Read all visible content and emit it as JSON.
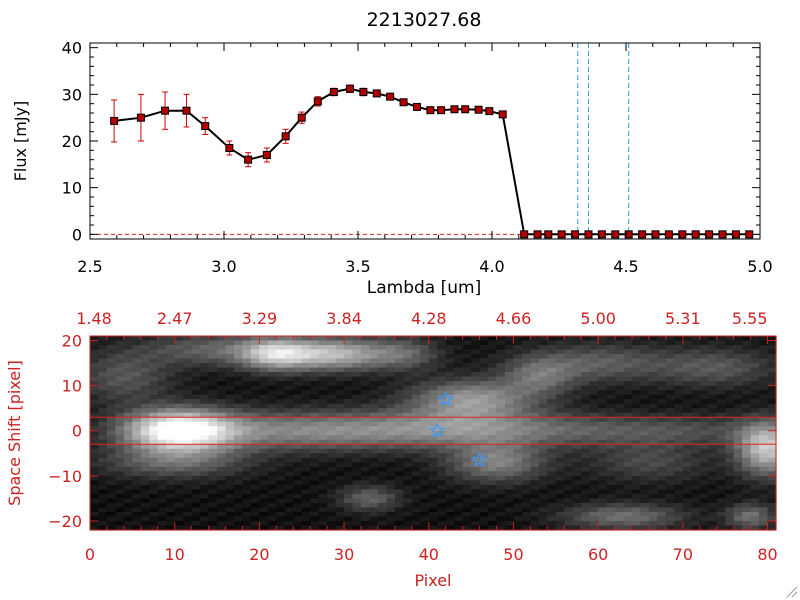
{
  "chart_data": [
    {
      "type": "line",
      "title": "2213027.68",
      "xlabel": "Lambda [um]",
      "ylabel": "Flux [mJy]",
      "xlim": [
        2.5,
        5.0
      ],
      "ylim": [
        -1,
        41
      ],
      "xticks": [
        2.5,
        3.0,
        3.5,
        4.0,
        4.5,
        5.0
      ],
      "xtick_labels": [
        "2.5",
        "3.0",
        "3.5",
        "4.0",
        "4.5",
        "5.0"
      ],
      "yticks": [
        0,
        10,
        20,
        30,
        40
      ],
      "ytick_labels": [
        "0",
        "10",
        "20",
        "30",
        "40"
      ],
      "series": [
        {
          "name": "flux",
          "color": "#000000",
          "marker_color": "#b00000",
          "errorbar_color": "#d00000",
          "x": [
            2.59,
            2.69,
            2.78,
            2.86,
            2.93,
            3.02,
            3.09,
            3.16,
            3.23,
            3.29,
            3.35,
            3.41,
            3.47,
            3.52,
            3.57,
            3.62,
            3.67,
            3.72,
            3.77,
            3.81,
            3.86,
            3.9,
            3.95,
            3.99,
            4.04,
            4.12,
            4.17,
            4.21,
            4.26,
            4.31,
            4.36,
            4.41,
            4.46,
            4.51,
            4.56,
            4.61,
            4.66,
            4.71,
            4.76,
            4.81,
            4.86,
            4.91,
            4.96
          ],
          "y": [
            24.3,
            25.0,
            26.5,
            26.5,
            23.2,
            18.5,
            16.0,
            17.0,
            21.0,
            25.0,
            28.5,
            30.5,
            31.2,
            30.5,
            30.2,
            29.5,
            28.3,
            27.3,
            26.6,
            26.6,
            26.8,
            26.8,
            26.7,
            26.4,
            25.7,
            0,
            0,
            0,
            0,
            0,
            0,
            0,
            0,
            0,
            0,
            0,
            0,
            0,
            0,
            0,
            0,
            0,
            0
          ],
          "yerr": [
            4.5,
            5.0,
            4.0,
            3.5,
            1.8,
            1.5,
            1.5,
            1.5,
            1.5,
            1.2,
            1.0,
            0.8,
            0.8,
            0.8,
            0.6,
            0.6,
            0.6,
            0.5,
            0.5,
            0.5,
            0.5,
            0.5,
            0.5,
            0.5,
            0.5,
            0,
            0,
            0,
            0,
            0,
            0,
            0,
            0,
            0,
            0,
            0,
            0,
            0,
            0,
            0,
            0,
            0,
            0
          ]
        }
      ],
      "reference_lines": {
        "vertical_x": [
          4.32,
          4.36,
          4.51
        ],
        "vertical_color": "#3399dd",
        "horizontal_y": [
          0
        ],
        "horizontal_color": "#dd2222"
      }
    },
    {
      "type": "heatmap",
      "xlabel": "Pixel",
      "ylabel": "Space Shift [pixel]",
      "xlim": [
        0,
        81
      ],
      "ylim": [
        -22,
        21
      ],
      "xticks": [
        0,
        10,
        20,
        30,
        40,
        50,
        60,
        70,
        80
      ],
      "xtick_labels": [
        "0",
        "10",
        "20",
        "30",
        "40",
        "50",
        "60",
        "70",
        "80"
      ],
      "yticks": [
        -20,
        -10,
        0,
        10,
        20
      ],
      "ytick_labels": [
        "−20",
        "−10",
        "0",
        "10",
        "20"
      ],
      "top_axis_positions": [
        0,
        10,
        20,
        30,
        40,
        50,
        60,
        70,
        80
      ],
      "top_axis_labels": [
        "1.48",
        "2.47",
        "3.29",
        "3.84",
        "4.28",
        "4.66",
        "5.00",
        "5.31",
        "5.55"
      ],
      "axis_color": "#cc2222",
      "colormap": "grayscale",
      "extraction_lines_y": [
        3,
        -3
      ],
      "extraction_line_color": "#dd2222",
      "blobs": [
        {
          "x": 10.5,
          "y": 0,
          "sx": 4.5,
          "sy": 3.2,
          "amp": 1.0
        },
        {
          "x": 25,
          "y": 0,
          "sx": 10,
          "sy": 3,
          "amp": 0.42
        },
        {
          "x": 44,
          "y": 0.5,
          "sx": 9,
          "sy": 3,
          "amp": 0.38
        },
        {
          "x": 66,
          "y": 0,
          "sx": 12,
          "sy": 2.5,
          "amp": 0.24
        },
        {
          "x": 80,
          "y": -4,
          "sx": 2.5,
          "sy": 4,
          "amp": 0.7
        },
        {
          "x": 22,
          "y": 17,
          "sx": 3,
          "sy": 2.5,
          "amp": 0.62
        },
        {
          "x": 29,
          "y": 17,
          "sx": 4,
          "sy": 2.5,
          "amp": 0.62
        },
        {
          "x": 15,
          "y": 18,
          "sx": 6,
          "sy": 2.5,
          "amp": 0.3
        },
        {
          "x": 4,
          "y": 12,
          "sx": 4,
          "sy": 4,
          "amp": 0.25
        },
        {
          "x": 45,
          "y": 7,
          "sx": 5,
          "sy": 3,
          "amp": 0.5
        },
        {
          "x": 37,
          "y": 17,
          "sx": 3,
          "sy": 2.5,
          "amp": 0.3
        },
        {
          "x": 53,
          "y": 12,
          "sx": 3,
          "sy": 3,
          "amp": 0.3
        },
        {
          "x": 60,
          "y": 15,
          "sx": 6,
          "sy": 3,
          "amp": 0.28
        },
        {
          "x": 74,
          "y": 14,
          "sx": 5,
          "sy": 3,
          "amp": 0.25
        },
        {
          "x": 10,
          "y": -7,
          "sx": 6,
          "sy": 2.5,
          "amp": 0.3
        },
        {
          "x": 48,
          "y": -7,
          "sx": 4,
          "sy": 3,
          "amp": 0.42
        },
        {
          "x": 33,
          "y": -15,
          "sx": 2.5,
          "sy": 2,
          "amp": 0.3
        },
        {
          "x": 63,
          "y": -19,
          "sx": 5,
          "sy": 2,
          "amp": 0.35
        },
        {
          "x": 78,
          "y": -19,
          "sx": 2,
          "sy": 2,
          "amp": 0.35
        },
        {
          "x": 66,
          "y": -7,
          "sx": 5,
          "sy": 3,
          "amp": 0.2
        }
      ],
      "star_markers": [
        {
          "x": 42,
          "y": 7
        },
        {
          "x": 41,
          "y": 0
        },
        {
          "x": 46,
          "y": -6.5
        }
      ],
      "star_color": "#3399ff"
    }
  ]
}
